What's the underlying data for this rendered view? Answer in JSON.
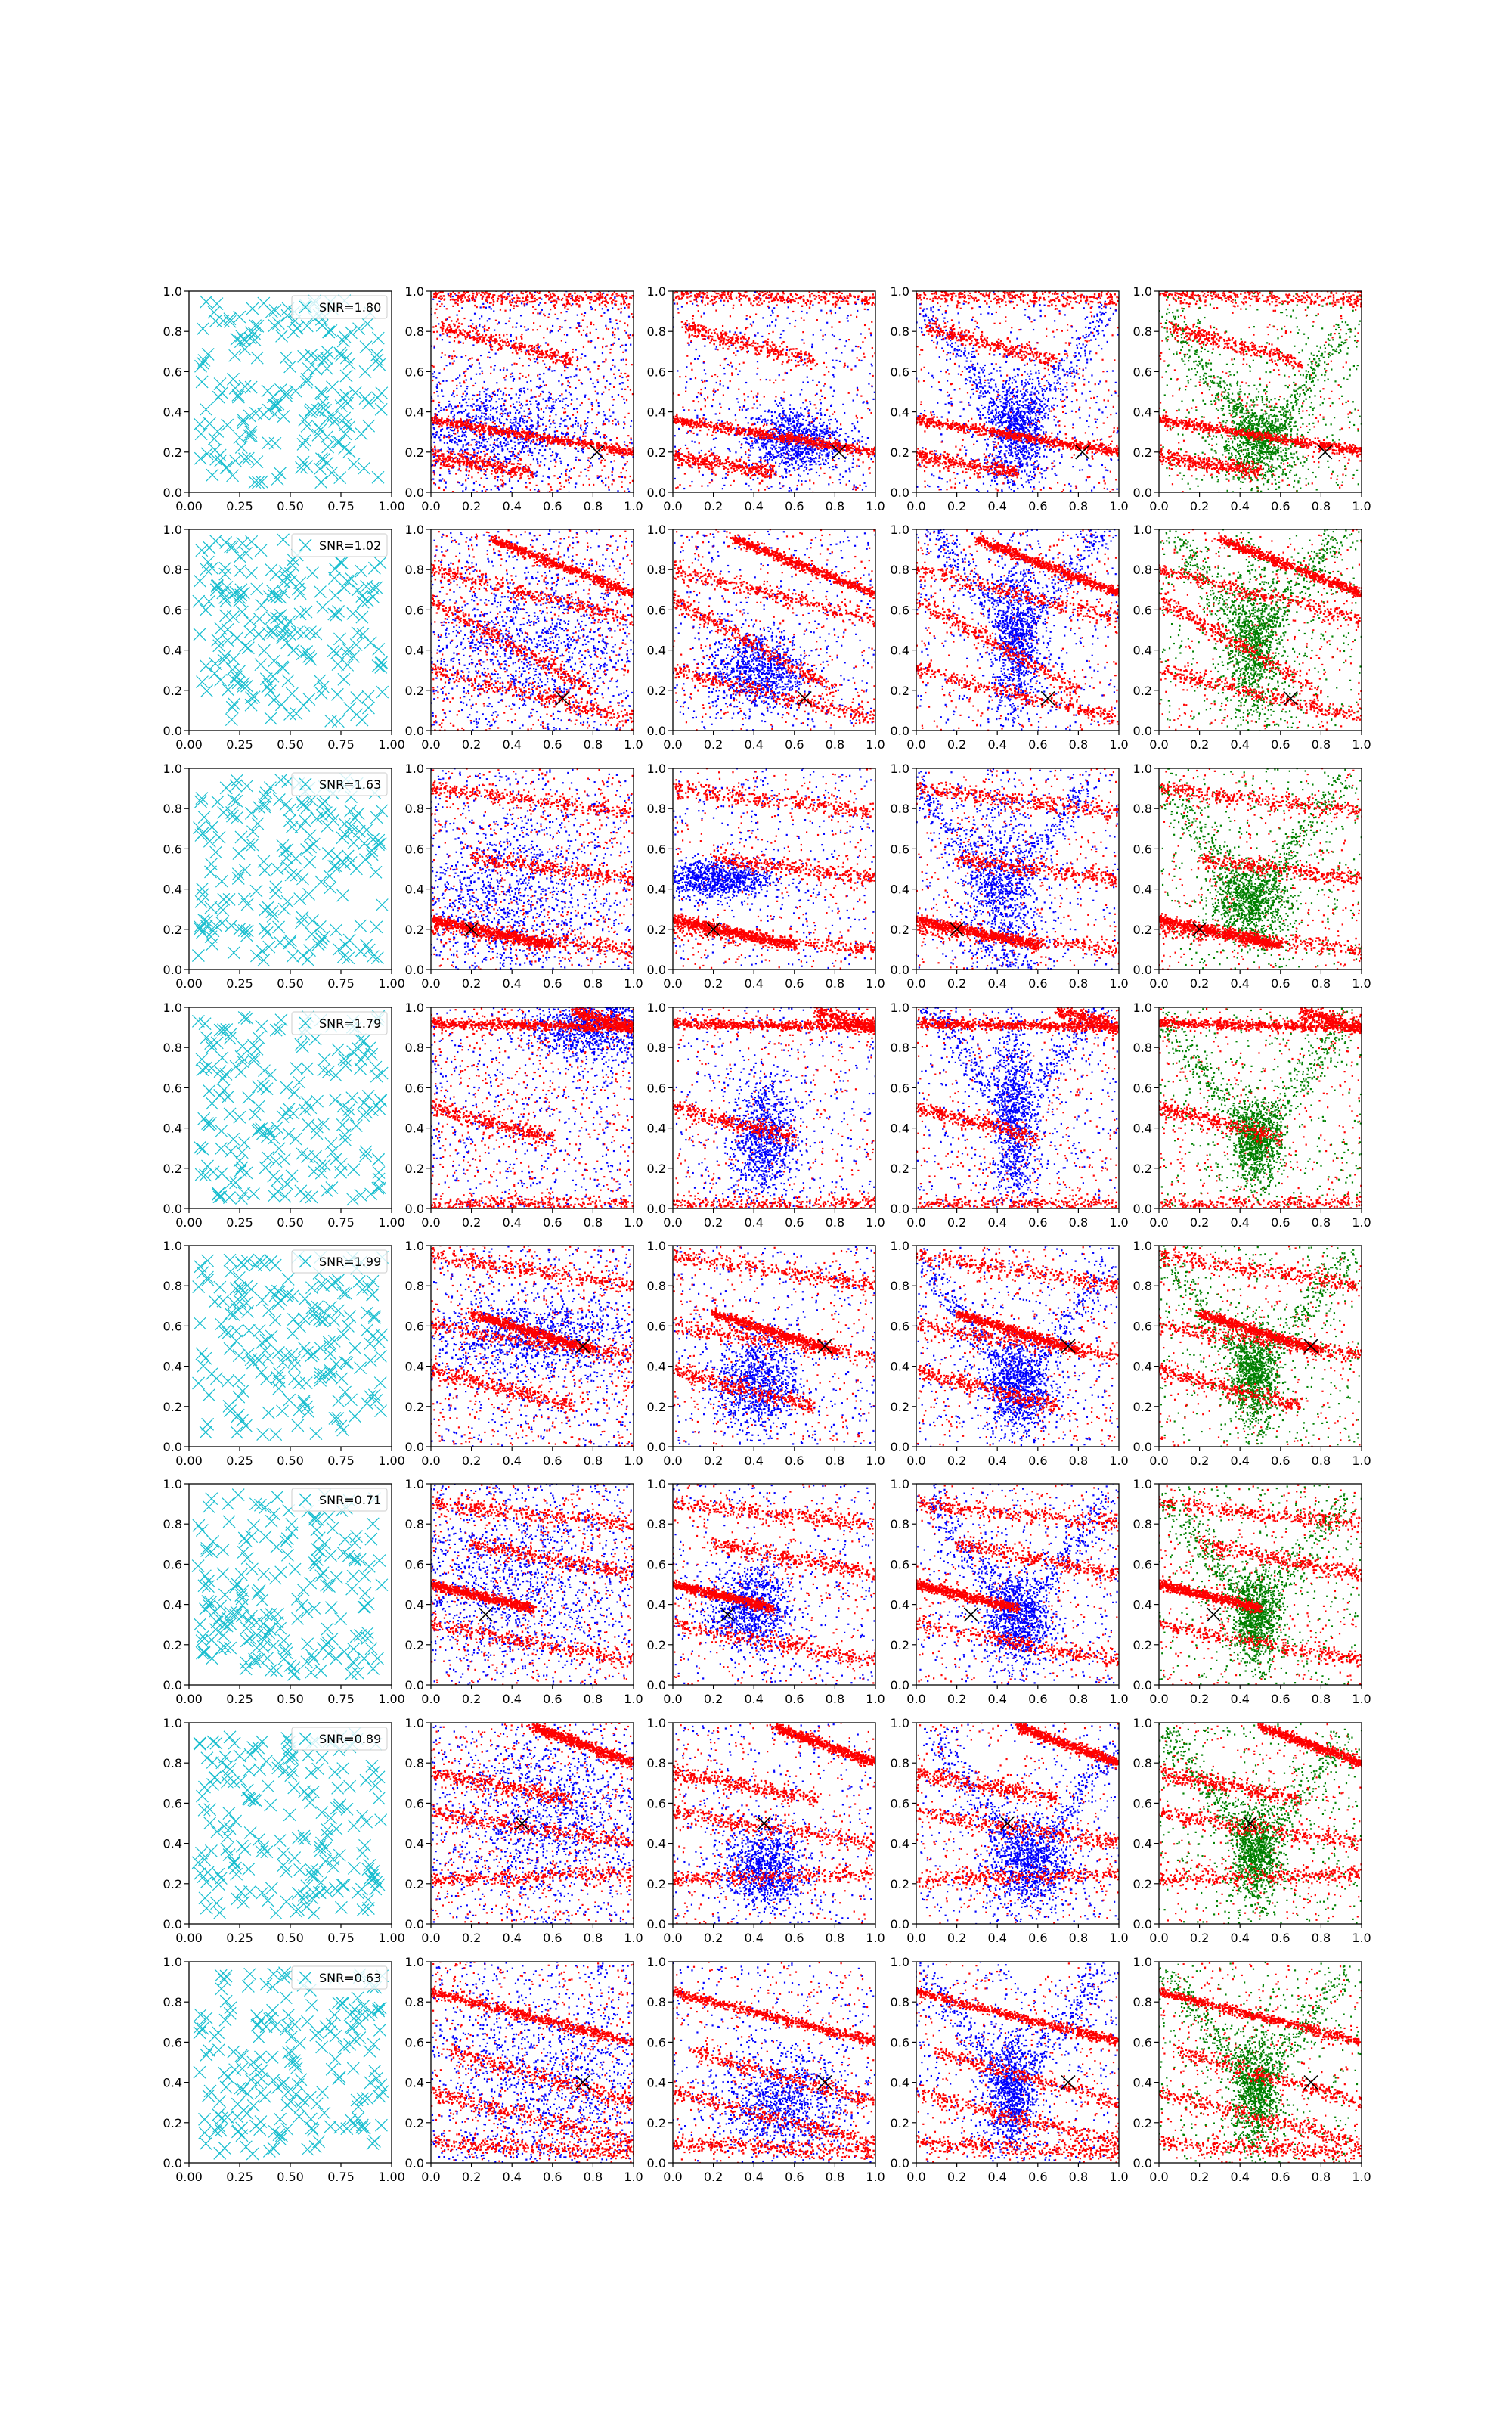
{
  "figure": {
    "rows": 8,
    "cols": 5,
    "colors": {
      "marker": "#17becf",
      "red": "#ff0000",
      "blue": "#0000ff",
      "green": "#008000",
      "cross": "#000000"
    }
  },
  "chart_data": {
    "type": "scatter",
    "grid": false,
    "axis_ranges": {
      "first_column": {
        "xlim": [
          0,
          1
        ],
        "ylim": [
          0,
          1
        ]
      },
      "other_columns": {
        "xlim": [
          0,
          1
        ],
        "ylim": [
          0,
          1
        ]
      }
    },
    "first_column_xticks": [
      "0.00",
      "0.25",
      "0.50",
      "0.75",
      "1.00"
    ],
    "first_column_yticks": [
      "0.0",
      "0.2",
      "0.4",
      "0.6",
      "0.8",
      "1.0"
    ],
    "other_columns_xticks": [
      "0.0",
      "0.2",
      "0.4",
      "0.6",
      "0.8",
      "1.0"
    ],
    "other_columns_yticks": [
      "0.0",
      "0.2",
      "0.4",
      "0.6",
      "0.8",
      "1.0"
    ],
    "column_series_colors": [
      "cyan",
      "red+blue",
      "red+blue",
      "red+blue",
      "red+green"
    ],
    "legend_placement": "top-right",
    "rows": [
      {
        "legend": "SNR=1.80",
        "cross": [
          0.82,
          0.2
        ],
        "streaks": [
          [
            0,
            0.36,
            1,
            0.2
          ],
          [
            0,
            0.98,
            1,
            0.96
          ],
          [
            0.05,
            0.82,
            0.7,
            0.65
          ],
          [
            0,
            0.18,
            0.5,
            0.1
          ]
        ],
        "columns": [
          {
            "blob": [
              0.3,
              0.3,
              0.25,
              0.12
            ],
            "vshape": false
          },
          {
            "blob": [
              0.6,
              0.26,
              0.12,
              0.08
            ],
            "vshape": false
          },
          {
            "blob": [
              0.5,
              0.3,
              0.08,
              0.15
            ],
            "vshape": true
          },
          {
            "blob": [
              0.5,
              0.25,
              0.1,
              0.1
            ],
            "vshape": true
          }
        ]
      },
      {
        "legend": "SNR=1.02",
        "cross": [
          0.65,
          0.16
        ],
        "streaks": [
          [
            0.3,
            0.95,
            1,
            0.68
          ],
          [
            0,
            0.65,
            0.8,
            0.2
          ],
          [
            0,
            0.3,
            1,
            0.06
          ],
          [
            0,
            0.8,
            1,
            0.55
          ]
        ],
        "columns": [
          {
            "blob": [
              0.45,
              0.42,
              0.3,
              0.18
            ],
            "vshape": false
          },
          {
            "blob": [
              0.42,
              0.3,
              0.12,
              0.1
            ],
            "vshape": false
          },
          {
            "blob": [
              0.5,
              0.45,
              0.06,
              0.2
            ],
            "vshape": true
          },
          {
            "blob": [
              0.47,
              0.42,
              0.07,
              0.18
            ],
            "vshape": true
          }
        ]
      },
      {
        "legend": "SNR=1.63",
        "cross": [
          0.2,
          0.2
        ],
        "streaks": [
          [
            0,
            0.25,
            0.6,
            0.12
          ],
          [
            0,
            0.2,
            1,
            0.1
          ],
          [
            0,
            0.9,
            1,
            0.78
          ],
          [
            0.2,
            0.55,
            1,
            0.45
          ]
        ],
        "columns": [
          {
            "blob": [
              0.35,
              0.35,
              0.25,
              0.2
            ],
            "vshape": false
          },
          {
            "blob": [
              0.2,
              0.45,
              0.15,
              0.05
            ],
            "vshape": false
          },
          {
            "blob": [
              0.42,
              0.35,
              0.1,
              0.25
            ],
            "vshape": true
          },
          {
            "blob": [
              0.45,
              0.33,
              0.1,
              0.1
            ],
            "vshape": true
          }
        ]
      },
      {
        "legend": "SNR=1.79",
        "cross": [
          -1,
          -1
        ],
        "streaks": [
          [
            0,
            0.92,
            1,
            0.9
          ],
          [
            0,
            0.5,
            0.6,
            0.35
          ],
          [
            0,
            0.02,
            1,
            0.02
          ],
          [
            0.7,
            0.98,
            1,
            0.9
          ]
        ],
        "columns": [
          {
            "blob": [
              0.8,
              0.9,
              0.15,
              0.08
            ],
            "vshape": false
          },
          {
            "blob": [
              0.45,
              0.35,
              0.08,
              0.15
            ],
            "vshape": false
          },
          {
            "blob": [
              0.48,
              0.45,
              0.05,
              0.25
            ],
            "vshape": true
          },
          {
            "blob": [
              0.48,
              0.33,
              0.06,
              0.1
            ],
            "vshape": true
          }
        ]
      },
      {
        "legend": "SNR=1.99",
        "cross": [
          0.75,
          0.5
        ],
        "streaks": [
          [
            0.2,
            0.66,
            0.8,
            0.48
          ],
          [
            0,
            0.38,
            0.7,
            0.2
          ],
          [
            0,
            0.95,
            1,
            0.8
          ],
          [
            0,
            0.6,
            1,
            0.45
          ]
        ],
        "columns": [
          {
            "blob": [
              0.5,
              0.55,
              0.25,
              0.1
            ],
            "vshape": false
          },
          {
            "blob": [
              0.42,
              0.32,
              0.1,
              0.12
            ],
            "vshape": false
          },
          {
            "blob": [
              0.5,
              0.3,
              0.08,
              0.12
            ],
            "vshape": true
          },
          {
            "blob": [
              0.47,
              0.35,
              0.06,
              0.12
            ],
            "vshape": true
          }
        ]
      },
      {
        "legend": "SNR=0.71",
        "cross": [
          0.27,
          0.35
        ],
        "streaks": [
          [
            0,
            0.5,
            0.5,
            0.38
          ],
          [
            0,
            0.9,
            1,
            0.8
          ],
          [
            0,
            0.3,
            1,
            0.12
          ],
          [
            0.2,
            0.7,
            1,
            0.55
          ]
        ],
        "columns": [
          {
            "blob": [
              0.35,
              0.5,
              0.3,
              0.2
            ],
            "vshape": false
          },
          {
            "blob": [
              0.38,
              0.38,
              0.1,
              0.1
            ],
            "vshape": false
          },
          {
            "blob": [
              0.5,
              0.33,
              0.08,
              0.12
            ],
            "vshape": true
          },
          {
            "blob": [
              0.48,
              0.33,
              0.06,
              0.12
            ],
            "vshape": true
          }
        ]
      },
      {
        "legend": "SNR=0.89",
        "cross": [
          0.45,
          0.5
        ],
        "streaks": [
          [
            0.5,
            0.98,
            1,
            0.8
          ],
          [
            0,
            0.55,
            1,
            0.4
          ],
          [
            0,
            0.22,
            1,
            0.25
          ],
          [
            0,
            0.75,
            0.7,
            0.62
          ]
        ],
        "columns": [
          {
            "blob": [
              0.6,
              0.55,
              0.25,
              0.2
            ],
            "vshape": false
          },
          {
            "blob": [
              0.45,
              0.28,
              0.1,
              0.1
            ],
            "vshape": false
          },
          {
            "blob": [
              0.55,
              0.3,
              0.1,
              0.12
            ],
            "vshape": true
          },
          {
            "blob": [
              0.48,
              0.35,
              0.06,
              0.12
            ],
            "vshape": true
          }
        ]
      },
      {
        "legend": "SNR=0.63",
        "cross": [
          0.75,
          0.4
        ],
        "streaks": [
          [
            0,
            0.85,
            1,
            0.6
          ],
          [
            0,
            0.35,
            1,
            0.1
          ],
          [
            0,
            0.1,
            1,
            0.05
          ],
          [
            0.1,
            0.55,
            1,
            0.3
          ]
        ],
        "columns": [
          {
            "blob": [
              0.6,
              0.4,
              0.3,
              0.25
            ],
            "vshape": false
          },
          {
            "blob": [
              0.55,
              0.3,
              0.15,
              0.12
            ],
            "vshape": false
          },
          {
            "blob": [
              0.47,
              0.35,
              0.06,
              0.15
            ],
            "vshape": true
          },
          {
            "blob": [
              0.48,
              0.35,
              0.06,
              0.15
            ],
            "vshape": true
          }
        ]
      }
    ]
  }
}
